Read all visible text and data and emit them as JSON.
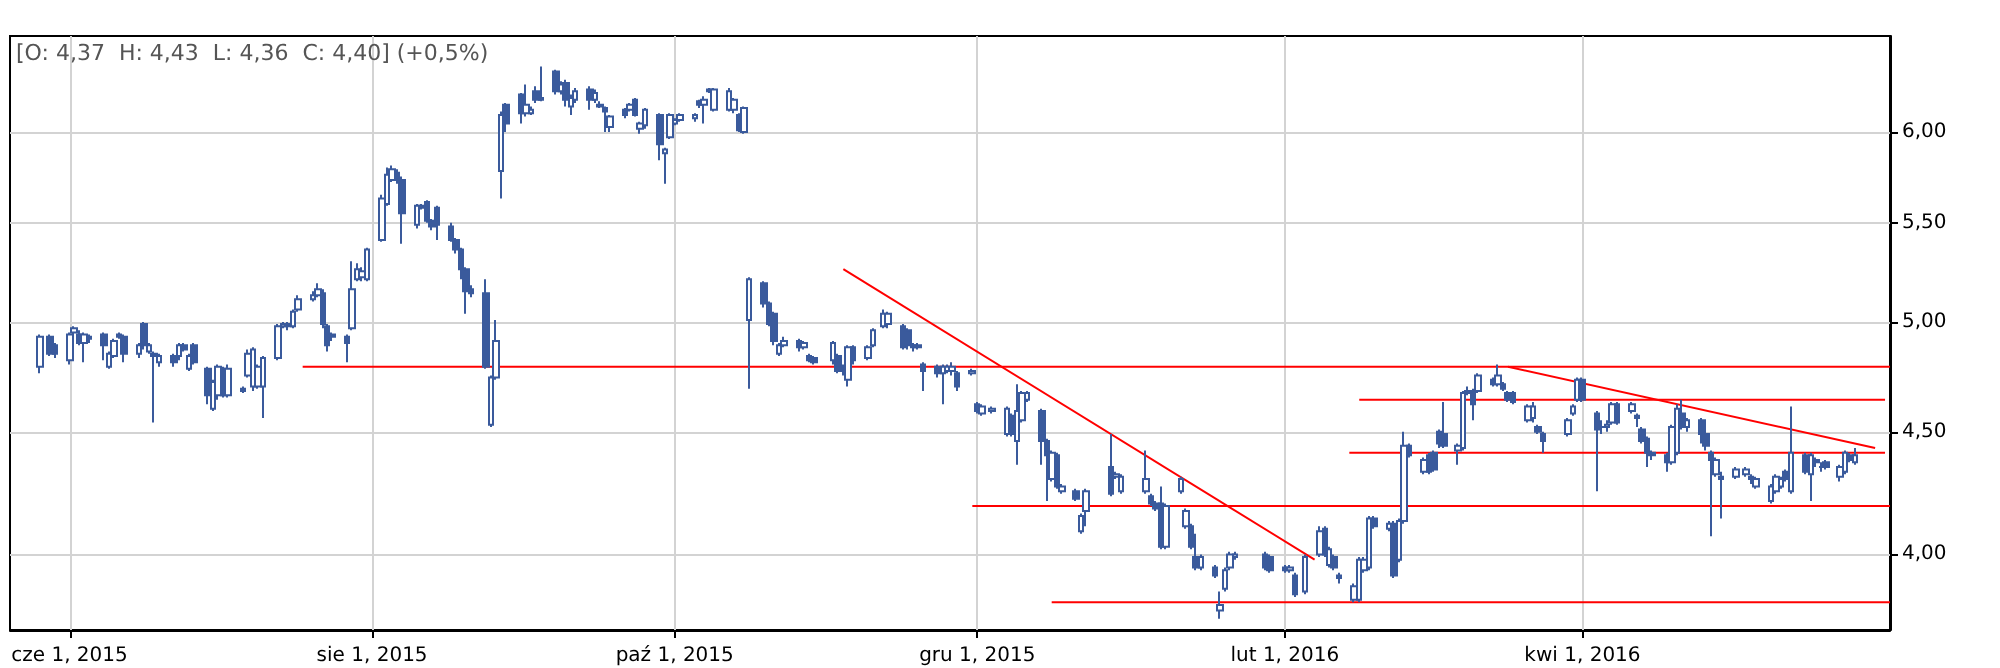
{
  "chart_data": {
    "type": "candlestick",
    "log": "y",
    "grid": true,
    "annotations": [
      "[O: 4,37  H: 4,43  L: 4,36  C: 4,40] (+0,5%)"
    ],
    "xlim": [
      "2015-05-20",
      "2016-06-02"
    ],
    "xticks": [
      {
        "value": "2015-06-01",
        "label": "cze 1, 2015"
      },
      {
        "value": "2015-08-01",
        "label": "sie 1, 2015"
      },
      {
        "value": "2015-10-01",
        "label": "paź 1, 2015"
      },
      {
        "value": "2015-12-01",
        "label": "gru 1, 2015"
      },
      {
        "value": "2016-02-01",
        "label": "lut 1, 2016"
      },
      {
        "value": "2016-04-01",
        "label": "kwi 1, 2016"
      }
    ],
    "ylim": [
      3.72,
      6.58
    ],
    "yticks": [
      {
        "value": 4,
        "label": "4,00"
      },
      {
        "value": 4.5,
        "label": "4,50"
      },
      {
        "value": 5,
        "label": "5,00"
      },
      {
        "value": 5.5,
        "label": "5,50"
      },
      {
        "value": 6,
        "label": "6,00"
      }
    ],
    "series": [
      {
        "type": "candlestick",
        "color": "#3a5a9c",
        "x": [
          "2015-05-26",
          "2015-05-28",
          "2015-05-29",
          "2015-06-01",
          "2015-06-02",
          "2015-06-03",
          "2015-06-04",
          "2015-06-05",
          "2015-06-08",
          "2015-06-09",
          "2015-06-10",
          "2015-06-11",
          "2015-06-12",
          "2015-06-15",
          "2015-06-16",
          "2015-06-17",
          "2015-06-18",
          "2015-06-19",
          "2015-06-22",
          "2015-06-23",
          "2015-06-24",
          "2015-06-25",
          "2015-06-26",
          "2015-06-29",
          "2015-06-30",
          "2015-07-01",
          "2015-07-02",
          "2015-07-03",
          "2015-07-06",
          "2015-07-07",
          "2015-07-08",
          "2015-07-09",
          "2015-07-10",
          "2015-07-13",
          "2015-07-14",
          "2015-07-15",
          "2015-07-16",
          "2015-07-17",
          "2015-07-20",
          "2015-07-21",
          "2015-07-22",
          "2015-07-23",
          "2015-07-24",
          "2015-07-27",
          "2015-07-28",
          "2015-07-29",
          "2015-07-30",
          "2015-07-31",
          "2015-08-03",
          "2015-08-04",
          "2015-08-05",
          "2015-08-06",
          "2015-08-07",
          "2015-08-10",
          "2015-08-11",
          "2015-08-12",
          "2015-08-13",
          "2015-08-14",
          "2015-08-17",
          "2015-08-18",
          "2015-08-19",
          "2015-08-20",
          "2015-08-21",
          "2015-08-24",
          "2015-08-25",
          "2015-08-26",
          "2015-08-27",
          "2015-08-28",
          "2015-08-31",
          "2015-09-01",
          "2015-09-02",
          "2015-09-03",
          "2015-09-04",
          "2015-09-07",
          "2015-09-08",
          "2015-09-09",
          "2015-09-10",
          "2015-09-11",
          "2015-09-14",
          "2015-09-15",
          "2015-09-16",
          "2015-09-17",
          "2015-09-18",
          "2015-09-21",
          "2015-09-22",
          "2015-09-23",
          "2015-09-24",
          "2015-09-25",
          "2015-09-28",
          "2015-09-29",
          "2015-09-30",
          "2015-10-01",
          "2015-10-02",
          "2015-10-05",
          "2015-10-06",
          "2015-10-07",
          "2015-10-08",
          "2015-10-09",
          "2015-10-12",
          "2015-10-13",
          "2015-10-14",
          "2015-10-15",
          "2015-10-16",
          "2015-10-19",
          "2015-10-20",
          "2015-10-21",
          "2015-10-22",
          "2015-10-23",
          "2015-10-26",
          "2015-10-27",
          "2015-10-28",
          "2015-10-29",
          "2015-11-02",
          "2015-11-03",
          "2015-11-04",
          "2015-11-05",
          "2015-11-06",
          "2015-11-09",
          "2015-11-10",
          "2015-11-12",
          "2015-11-13",
          "2015-11-16",
          "2015-11-17",
          "2015-11-18",
          "2015-11-19",
          "2015-11-20",
          "2015-11-23",
          "2015-11-24",
          "2015-11-25",
          "2015-11-26",
          "2015-11-27",
          "2015-11-30",
          "2015-12-01",
          "2015-12-02",
          "2015-12-04",
          "2015-12-07",
          "2015-12-08",
          "2015-12-09",
          "2015-12-10",
          "2015-12-11",
          "2015-12-14",
          "2015-12-15",
          "2015-12-16",
          "2015-12-17",
          "2015-12-18",
          "2015-12-21",
          "2015-12-22",
          "2015-12-23",
          "2015-12-28",
          "2015-12-29",
          "2015-12-30",
          "2016-01-04",
          "2016-01-05",
          "2016-01-06",
          "2016-01-07",
          "2016-01-08",
          "2016-01-11",
          "2016-01-12",
          "2016-01-13",
          "2016-01-14",
          "2016-01-15",
          "2016-01-18",
          "2016-01-19",
          "2016-01-20",
          "2016-01-21",
          "2016-01-22",
          "2016-01-28",
          "2016-01-29",
          "2016-02-01",
          "2016-02-02",
          "2016-02-03",
          "2016-02-05",
          "2016-02-08",
          "2016-02-09",
          "2016-02-10",
          "2016-02-11",
          "2016-02-12",
          "2016-02-15",
          "2016-02-16",
          "2016-02-17",
          "2016-02-18",
          "2016-02-19",
          "2016-02-22",
          "2016-02-23",
          "2016-02-24",
          "2016-02-25",
          "2016-02-26",
          "2016-02-29",
          "2016-03-01",
          "2016-03-02",
          "2016-03-03",
          "2016-03-04",
          "2016-03-07",
          "2016-03-08",
          "2016-03-09",
          "2016-03-10",
          "2016-03-11",
          "2016-03-14",
          "2016-03-15",
          "2016-03-16",
          "2016-03-17",
          "2016-03-18",
          "2016-03-21",
          "2016-03-22",
          "2016-03-23",
          "2016-03-24",
          "2016-03-29",
          "2016-03-30",
          "2016-03-31",
          "2016-04-01",
          "2016-04-04",
          "2016-04-05",
          "2016-04-06",
          "2016-04-07",
          "2016-04-08",
          "2016-04-11",
          "2016-04-12",
          "2016-04-13",
          "2016-04-14",
          "2016-04-15",
          "2016-04-18",
          "2016-04-19",
          "2016-04-20",
          "2016-04-21",
          "2016-04-22",
          "2016-04-25",
          "2016-04-26",
          "2016-04-27",
          "2016-04-28",
          "2016-04-29",
          "2016-05-02",
          "2016-05-04",
          "2016-05-05",
          "2016-05-06",
          "2016-05-09",
          "2016-05-10",
          "2016-05-11",
          "2016-05-12",
          "2016-05-13",
          "2016-05-16",
          "2016-05-17",
          "2016-05-18",
          "2016-05-19",
          "2016-05-20",
          "2016-05-23",
          "2016-05-24",
          "2016-05-25",
          "2016-05-26"
        ],
        "ohlc": [
          [
            4.79,
            4.94,
            4.76,
            4.93
          ],
          [
            4.93,
            4.94,
            4.84,
            4.85
          ],
          [
            4.89,
            4.9,
            4.83,
            4.85
          ],
          [
            4.82,
            4.95,
            4.8,
            4.94
          ],
          [
            4.95,
            4.98,
            4.94,
            4.97
          ],
          [
            4.94,
            4.96,
            4.89,
            4.9
          ],
          [
            4.9,
            4.95,
            4.81,
            4.94
          ],
          [
            4.93,
            4.94,
            4.9,
            4.92
          ],
          [
            4.94,
            4.95,
            4.82,
            4.89
          ],
          [
            4.79,
            4.86,
            4.78,
            4.85
          ],
          [
            4.84,
            4.92,
            4.83,
            4.91
          ],
          [
            4.94,
            4.95,
            4.92,
            4.93
          ],
          [
            4.93,
            4.94,
            4.81,
            4.85
          ],
          [
            4.85,
            4.9,
            4.83,
            4.89
          ],
          [
            4.99,
            5.0,
            4.87,
            4.89
          ],
          [
            4.86,
            4.9,
            4.85,
            4.89
          ],
          [
            4.85,
            4.86,
            4.54,
            4.84
          ],
          [
            4.81,
            4.85,
            4.79,
            4.84
          ],
          [
            4.84,
            4.85,
            4.79,
            4.81
          ],
          [
            4.84,
            4.9,
            4.82,
            4.89
          ],
          [
            4.89,
            4.9,
            4.86,
            4.87
          ],
          [
            4.78,
            4.85,
            4.77,
            4.84
          ],
          [
            4.89,
            4.9,
            4.8,
            4.81
          ],
          [
            4.78,
            4.79,
            4.62,
            4.66
          ],
          [
            4.6,
            4.73,
            4.59,
            4.72
          ],
          [
            4.66,
            4.8,
            4.64,
            4.79
          ],
          [
            4.78,
            4.79,
            4.65,
            4.66
          ],
          [
            4.66,
            4.8,
            4.65,
            4.78
          ],
          [
            4.69,
            4.7,
            4.67,
            4.68
          ],
          [
            4.75,
            4.87,
            4.74,
            4.85
          ],
          [
            4.7,
            4.88,
            4.68,
            4.87
          ],
          [
            4.7,
            4.8,
            4.69,
            4.79
          ],
          [
            4.7,
            4.84,
            4.56,
            4.83
          ],
          [
            4.83,
            4.99,
            4.82,
            4.98
          ],
          [
            4.98,
            5.0,
            4.97,
            4.99
          ],
          [
            4.99,
            5.0,
            4.96,
            4.98
          ],
          [
            4.98,
            5.06,
            4.97,
            5.05
          ],
          [
            5.06,
            5.13,
            5.05,
            5.11
          ],
          [
            5.11,
            5.15,
            5.1,
            5.13
          ],
          [
            5.13,
            5.19,
            5.12,
            5.16
          ],
          [
            5.14,
            5.16,
            4.97,
            4.99
          ],
          [
            4.98,
            4.99,
            4.86,
            4.89
          ],
          [
            4.94,
            4.95,
            4.91,
            4.93
          ],
          [
            4.93,
            4.94,
            4.81,
            4.9
          ],
          [
            4.97,
            5.3,
            4.96,
            5.16
          ],
          [
            5.21,
            5.29,
            5.2,
            5.26
          ],
          [
            5.22,
            5.27,
            5.2,
            5.25
          ],
          [
            5.21,
            5.37,
            5.2,
            5.36
          ],
          [
            5.41,
            5.65,
            5.4,
            5.63
          ],
          [
            5.6,
            5.8,
            5.59,
            5.76
          ],
          [
            5.73,
            5.81,
            5.72,
            5.79
          ],
          [
            5.77,
            5.79,
            5.71,
            5.73
          ],
          [
            5.73,
            5.75,
            5.39,
            5.55
          ],
          [
            5.49,
            5.6,
            5.47,
            5.59
          ],
          [
            5.59,
            5.6,
            5.57,
            5.58
          ],
          [
            5.61,
            5.62,
            5.5,
            5.51
          ],
          [
            5.51,
            5.52,
            5.46,
            5.48
          ],
          [
            5.58,
            5.59,
            5.41,
            5.49
          ],
          [
            5.48,
            5.5,
            5.4,
            5.41
          ],
          [
            5.41,
            5.42,
            5.34,
            5.36
          ],
          [
            5.36,
            5.37,
            5.21,
            5.26
          ],
          [
            5.26,
            5.27,
            5.04,
            5.15
          ],
          [
            5.16,
            5.18,
            5.12,
            5.14
          ],
          [
            5.14,
            5.21,
            4.78,
            4.79
          ],
          [
            4.53,
            4.75,
            4.52,
            4.74
          ],
          [
            4.74,
            5.01,
            4.73,
            4.91
          ],
          [
            5.78,
            6.12,
            5.63,
            6.1
          ],
          [
            6.16,
            6.17,
            6.0,
            6.05
          ],
          [
            6.22,
            6.23,
            6.05,
            6.11
          ],
          [
            6.11,
            6.28,
            6.09,
            6.16
          ],
          [
            6.11,
            6.15,
            6.1,
            6.13
          ],
          [
            6.24,
            6.27,
            6.17,
            6.19
          ],
          [
            6.19,
            6.39,
            6.18,
            6.2
          ],
          [
            6.36,
            6.37,
            6.22,
            6.24
          ],
          [
            6.24,
            6.3,
            6.22,
            6.28
          ],
          [
            6.29,
            6.31,
            6.15,
            6.19
          ],
          [
            6.15,
            6.22,
            6.1,
            6.2
          ],
          [
            6.19,
            6.26,
            6.17,
            6.24
          ],
          [
            6.25,
            6.27,
            6.13,
            6.19
          ],
          [
            6.19,
            6.25,
            6.17,
            6.23
          ],
          [
            6.15,
            6.18,
            6.14,
            6.16
          ],
          [
            6.14,
            6.15,
            6.0,
            6.12
          ],
          [
            6.03,
            6.1,
            6.0,
            6.09
          ],
          [
            6.13,
            6.14,
            6.08,
            6.1
          ],
          [
            6.13,
            6.17,
            6.12,
            6.16
          ],
          [
            6.19,
            6.2,
            6.09,
            6.1
          ],
          [
            6.02,
            6.06,
            5.99,
            6.05
          ],
          [
            6.04,
            6.14,
            6.02,
            6.13
          ],
          [
            6.1,
            6.11,
            5.84,
            5.93
          ],
          [
            5.88,
            5.91,
            5.71,
            5.9
          ],
          [
            5.97,
            6.11,
            5.96,
            6.1
          ],
          [
            6.05,
            6.08,
            6.04,
            6.07
          ],
          [
            6.07,
            6.11,
            6.06,
            6.1
          ],
          [
            6.08,
            6.11,
            6.06,
            6.1
          ],
          [
            6.18,
            6.19,
            6.14,
            6.16
          ],
          [
            6.16,
            6.21,
            6.05,
            6.19
          ],
          [
            6.25,
            6.26,
            6.23,
            6.24
          ],
          [
            6.13,
            6.26,
            6.12,
            6.25
          ],
          [
            6.13,
            6.26,
            6.12,
            6.24
          ],
          [
            6.13,
            6.2,
            6.11,
            6.19
          ],
          [
            6.1,
            6.11,
            6.0,
            6.01
          ],
          [
            6.0,
            6.15,
            5.99,
            6.14
          ],
          [
            5.01,
            5.22,
            4.69,
            5.21
          ],
          [
            5.19,
            5.2,
            5.07,
            5.09
          ],
          [
            5.09,
            5.1,
            4.98,
            4.99
          ],
          [
            5.04,
            5.05,
            4.89,
            4.91
          ],
          [
            4.85,
            4.9,
            4.84,
            4.89
          ],
          [
            4.89,
            4.93,
            4.88,
            4.91
          ],
          [
            4.91,
            4.92,
            4.86,
            4.88
          ],
          [
            4.88,
            4.91,
            4.87,
            4.9
          ],
          [
            4.84,
            4.85,
            4.81,
            4.82
          ],
          [
            4.83,
            4.84,
            4.8,
            4.81
          ],
          [
            4.82,
            4.91,
            4.8,
            4.9
          ],
          [
            4.84,
            4.85,
            4.76,
            4.77
          ],
          [
            4.79,
            4.8,
            4.75,
            4.77
          ],
          [
            4.73,
            4.89,
            4.7,
            4.88
          ],
          [
            4.88,
            4.89,
            4.8,
            4.82
          ],
          [
            4.83,
            4.89,
            4.82,
            4.88
          ],
          [
            4.89,
            4.97,
            4.88,
            4.96
          ],
          [
            4.98,
            5.06,
            4.97,
            5.04
          ],
          [
            4.99,
            5.05,
            4.97,
            5.04
          ],
          [
            4.98,
            4.99,
            4.87,
            4.88
          ],
          [
            4.96,
            4.97,
            4.87,
            4.89
          ],
          [
            4.89,
            4.9,
            4.86,
            4.88
          ],
          [
            4.88,
            4.9,
            4.87,
            4.89
          ],
          [
            4.8,
            4.81,
            4.68,
            4.77
          ],
          [
            4.79,
            4.8,
            4.74,
            4.76
          ],
          [
            4.76,
            4.8,
            4.62,
            4.79
          ],
          [
            4.77,
            4.8,
            4.76,
            4.79
          ],
          [
            4.77,
            4.81,
            4.75,
            4.79
          ],
          [
            4.76,
            4.77,
            4.68,
            4.7
          ],
          [
            4.76,
            4.78,
            4.75,
            4.77
          ],
          [
            4.62,
            4.63,
            4.58,
            4.59
          ],
          [
            4.58,
            4.62,
            4.57,
            4.61
          ],
          [
            4.59,
            4.61,
            4.58,
            4.6
          ],
          [
            4.49,
            4.61,
            4.48,
            4.6
          ],
          [
            4.57,
            4.58,
            4.48,
            4.49
          ],
          [
            4.46,
            4.71,
            4.36,
            4.59
          ],
          [
            4.55,
            4.68,
            4.54,
            4.67
          ],
          [
            4.64,
            4.68,
            4.63,
            4.67
          ],
          [
            4.59,
            4.6,
            4.36,
            4.46
          ],
          [
            4.46,
            4.47,
            4.21,
            4.4
          ],
          [
            4.3,
            4.42,
            4.29,
            4.41
          ],
          [
            4.4,
            4.41,
            4.26,
            4.27
          ],
          [
            4.25,
            4.28,
            4.24,
            4.27
          ],
          [
            4.25,
            4.26,
            4.21,
            4.22
          ],
          [
            4.09,
            4.16,
            4.08,
            4.15
          ],
          [
            4.17,
            4.26,
            4.11,
            4.25
          ],
          [
            4.35,
            4.49,
            4.23,
            4.24
          ],
          [
            4.31,
            4.33,
            4.3,
            4.32
          ],
          [
            4.25,
            4.32,
            4.24,
            4.31
          ],
          [
            4.25,
            4.42,
            4.24,
            4.3
          ],
          [
            4.23,
            4.24,
            4.19,
            4.2
          ],
          [
            4.2,
            4.21,
            4.17,
            4.18
          ],
          [
            4.2,
            4.27,
            4.02,
            4.03
          ],
          [
            4.03,
            4.2,
            4.02,
            4.19
          ],
          [
            4.25,
            4.31,
            4.24,
            4.3
          ],
          [
            4.11,
            4.18,
            4.1,
            4.17
          ],
          [
            4.11,
            4.12,
            4.02,
            4.03
          ],
          [
            3.99,
            4.08,
            3.94,
            3.95
          ],
          [
            3.95,
            4.0,
            3.94,
            3.99
          ],
          [
            3.95,
            3.96,
            3.91,
            3.92
          ],
          [
            3.79,
            3.86,
            3.76,
            3.81
          ],
          [
            3.87,
            3.95,
            3.86,
            3.94
          ],
          [
            3.95,
            4.01,
            3.94,
            4.0
          ],
          [
            3.99,
            4.01,
            3.98,
            4.0
          ],
          [
            4.0,
            4.01,
            3.94,
            3.95
          ],
          [
            3.99,
            4.0,
            3.93,
            3.94
          ],
          [
            3.95,
            3.96,
            3.93,
            3.94
          ],
          [
            3.94,
            3.96,
            3.93,
            3.95
          ],
          [
            3.92,
            3.93,
            3.84,
            3.85
          ],
          [
            3.86,
            4.0,
            3.85,
            3.99
          ],
          [
            4.0,
            4.11,
            3.99,
            4.09
          ],
          [
            4.1,
            4.11,
            3.99,
            4.0
          ],
          [
            3.96,
            4.03,
            3.95,
            4.02
          ],
          [
            3.99,
            4.0,
            3.94,
            3.95
          ],
          [
            3.92,
            3.93,
            3.89,
            3.91
          ],
          [
            3.83,
            3.89,
            3.82,
            3.88
          ],
          [
            3.83,
            3.99,
            3.82,
            3.98
          ],
          [
            3.94,
            3.99,
            3.93,
            3.98
          ],
          [
            3.95,
            4.15,
            3.94,
            4.14
          ],
          [
            4.14,
            4.15,
            4.1,
            4.11
          ],
          [
            4.1,
            4.13,
            4.09,
            4.12
          ],
          [
            4.12,
            4.13,
            3.91,
            3.92
          ],
          [
            3.98,
            4.14,
            3.97,
            4.13
          ],
          [
            4.13,
            4.5,
            4.12,
            4.44
          ],
          [
            4.44,
            4.45,
            4.39,
            4.4
          ],
          [
            4.33,
            4.39,
            4.32,
            4.38
          ],
          [
            4.4,
            4.41,
            4.32,
            4.33
          ],
          [
            4.41,
            4.42,
            4.33,
            4.34
          ],
          [
            4.5,
            4.51,
            4.43,
            4.45
          ],
          [
            4.49,
            4.63,
            4.43,
            4.44
          ],
          [
            4.42,
            4.45,
            4.36,
            4.44
          ],
          [
            4.43,
            4.68,
            4.42,
            4.67
          ],
          [
            4.67,
            4.7,
            4.66,
            4.68
          ],
          [
            4.68,
            4.69,
            4.55,
            4.62
          ],
          [
            4.68,
            4.76,
            4.67,
            4.75
          ],
          [
            4.73,
            4.74,
            4.7,
            4.71
          ],
          [
            4.71,
            4.8,
            4.7,
            4.75
          ],
          [
            4.71,
            4.72,
            4.68,
            4.69
          ],
          [
            4.67,
            4.68,
            4.63,
            4.64
          ],
          [
            4.67,
            4.68,
            4.62,
            4.63
          ],
          [
            4.55,
            4.62,
            4.54,
            4.61
          ],
          [
            4.56,
            4.63,
            4.54,
            4.61
          ],
          [
            4.52,
            4.53,
            4.49,
            4.5
          ],
          [
            4.49,
            4.5,
            4.41,
            4.46
          ],
          [
            4.49,
            4.56,
            4.48,
            4.55
          ],
          [
            4.58,
            4.62,
            4.57,
            4.61
          ],
          [
            4.64,
            4.74,
            4.63,
            4.73
          ],
          [
            4.73,
            4.74,
            4.63,
            4.64
          ],
          [
            4.58,
            4.59,
            4.25,
            4.51
          ],
          [
            4.52,
            4.55,
            4.49,
            4.52
          ],
          [
            4.52,
            4.55,
            4.5,
            4.53
          ],
          [
            4.54,
            4.63,
            4.53,
            4.62
          ],
          [
            4.62,
            4.63,
            4.53,
            4.54
          ],
          [
            4.59,
            4.63,
            4.58,
            4.62
          ],
          [
            4.57,
            4.58,
            4.52,
            4.56
          ],
          [
            4.51,
            4.52,
            4.45,
            4.46
          ],
          [
            4.47,
            4.48,
            4.35,
            4.41
          ],
          [
            4.41,
            4.42,
            4.38,
            4.4
          ],
          [
            4.4,
            4.41,
            4.33,
            4.37
          ],
          [
            4.37,
            4.53,
            4.36,
            4.52
          ],
          [
            4.41,
            4.62,
            4.4,
            4.6
          ],
          [
            4.58,
            4.64,
            4.51,
            4.52
          ],
          [
            4.52,
            4.56,
            4.5,
            4.55
          ],
          [
            4.55,
            4.56,
            4.45,
            4.49
          ],
          [
            4.49,
            4.5,
            4.42,
            4.44
          ],
          [
            4.41,
            4.42,
            4.07,
            4.38
          ],
          [
            4.32,
            4.39,
            4.31,
            4.38
          ],
          [
            4.31,
            4.33,
            4.14,
            4.3
          ],
          [
            4.31,
            4.35,
            4.3,
            4.34
          ],
          [
            4.32,
            4.35,
            4.31,
            4.34
          ],
          [
            4.31,
            4.32,
            4.28,
            4.3
          ],
          [
            4.27,
            4.31,
            4.26,
            4.3
          ],
          [
            4.21,
            4.28,
            4.2,
            4.27
          ],
          [
            4.25,
            4.32,
            4.24,
            4.31
          ],
          [
            4.27,
            4.31,
            4.26,
            4.3
          ],
          [
            4.33,
            4.34,
            4.29,
            4.3
          ],
          [
            4.25,
            4.61,
            4.24,
            4.41
          ],
          [
            4.4,
            4.41,
            4.32,
            4.33
          ],
          [
            4.32,
            4.41,
            4.21,
            4.4
          ],
          [
            4.38,
            4.39,
            4.35,
            4.37
          ],
          [
            4.35,
            4.37,
            4.33,
            4.35
          ],
          [
            4.37,
            4.38,
            4.34,
            4.35
          ],
          [
            4.31,
            4.36,
            4.29,
            4.35
          ],
          [
            4.33,
            4.42,
            4.32,
            4.41
          ],
          [
            4.4,
            4.41,
            4.37,
            4.38
          ],
          [
            4.37,
            4.43,
            4.36,
            4.4
          ]
        ]
      },
      {
        "type": "line",
        "color": "#ff0000",
        "x": [
          "2015-07-18",
          "2016-06-02"
        ],
        "values": [
          4.79,
          4.79
        ]
      },
      {
        "type": "line",
        "color": "#ff0000",
        "x": [
          "2016-02-16",
          "2016-06-01"
        ],
        "values": [
          4.64,
          4.64
        ]
      },
      {
        "type": "line",
        "color": "#ff0000",
        "x": [
          "2016-02-14",
          "2016-06-01"
        ],
        "values": [
          4.41,
          4.41
        ]
      },
      {
        "type": "line",
        "color": "#ff0000",
        "x": [
          "2015-11-30",
          "2016-06-02"
        ],
        "values": [
          4.19,
          4.19
        ]
      },
      {
        "type": "line",
        "color": "#ff0000",
        "x": [
          "2015-12-16",
          "2016-06-02"
        ],
        "values": [
          3.82,
          3.82
        ]
      },
      {
        "type": "line",
        "color": "#ff0000",
        "x": [
          "2015-11-04",
          "2016-02-07"
        ],
        "values": [
          5.26,
          3.98
        ]
      },
      {
        "type": "line",
        "color": "#ff0000",
        "x": [
          "2016-03-17",
          "2016-05-30"
        ],
        "values": [
          4.79,
          4.43
        ]
      }
    ]
  }
}
